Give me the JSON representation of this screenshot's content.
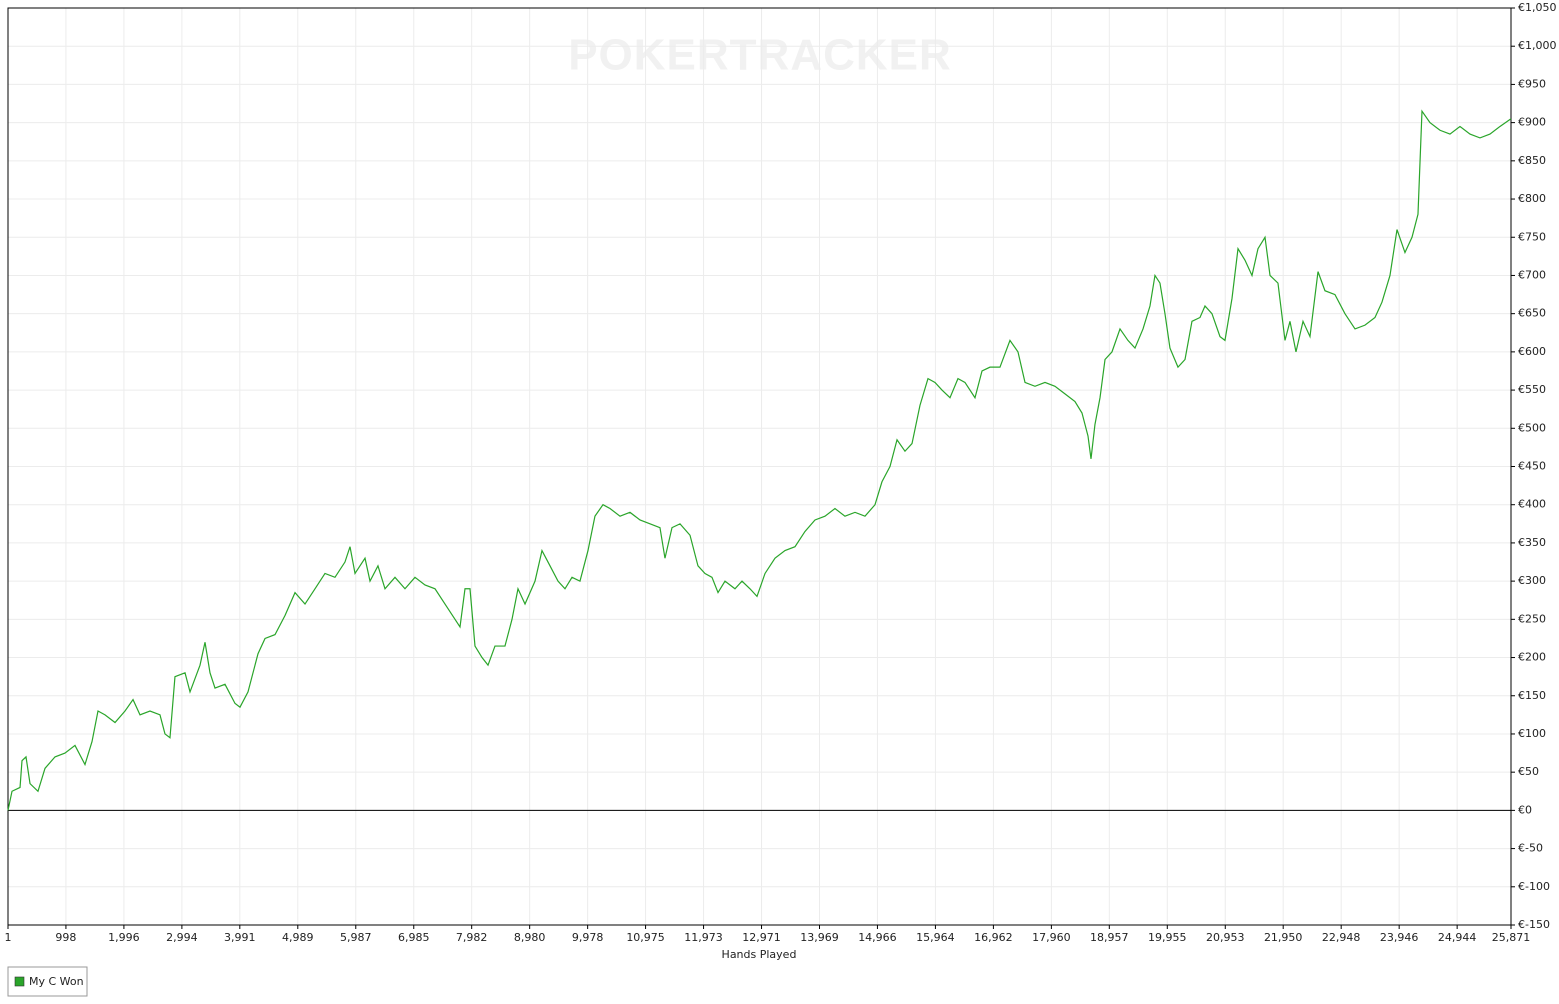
{
  "chart_data": {
    "type": "line",
    "watermark": "POKERTRACKER",
    "xlabel": "Hands Played",
    "x": [
      1,
      70,
      208,
      242,
      311,
      380,
      517,
      638,
      810,
      982,
      1154,
      1326,
      1447,
      1550,
      1671,
      1843,
      2015,
      2153,
      2273,
      2445,
      2617,
      2703,
      2789,
      2875,
      3048,
      3134,
      3306,
      3392,
      3478,
      3564,
      3736,
      3908,
      3994,
      4132,
      4304,
      4425,
      4597,
      4769,
      4941,
      5113,
      5285,
      5457,
      5629,
      5801,
      5888,
      5974,
      6146,
      6232,
      6369,
      6490,
      6662,
      6834,
      7006,
      7178,
      7351,
      7523,
      7695,
      7781,
      7867,
      7953,
      8039,
      8160,
      8263,
      8383,
      8555,
      8676,
      8779,
      8900,
      9072,
      9192,
      9330,
      9468,
      9588,
      9709,
      9846,
      9984,
      10104,
      10242,
      10363,
      10535,
      10707,
      10879,
      11051,
      11223,
      11309,
      11430,
      11568,
      11740,
      11877,
      11998,
      12118,
      12222,
      12342,
      12514,
      12635,
      12772,
      12893,
      13031,
      13203,
      13375,
      13547,
      13719,
      13891,
      14063,
      14235,
      14407,
      14580,
      14752,
      14924,
      15044,
      15182,
      15303,
      15440,
      15561,
      15698,
      15836,
      15957,
      16077,
      16215,
      16352,
      16473,
      16645,
      16766,
      16903,
      17075,
      17247,
      17385,
      17506,
      17678,
      17850,
      18022,
      18194,
      18366,
      18487,
      18590,
      18642,
      18710,
      18797,
      18883,
      19003,
      19141,
      19278,
      19399,
      19537,
      19657,
      19743,
      19829,
      19915,
      20001,
      20139,
      20260,
      20380,
      20518,
      20604,
      20724,
      20862,
      20948,
      21069,
      21172,
      21292,
      21413,
      21516,
      21637,
      21723,
      21860,
      21981,
      22067,
      22170,
      22291,
      22411,
      22549,
      22669,
      22841,
      23013,
      23186,
      23358,
      23530,
      23650,
      23788,
      23909,
      24046,
      24167,
      24270,
      24339,
      24476,
      24649,
      24821,
      24993,
      25165,
      25337,
      25509,
      25681,
      25871
    ],
    "series": [
      {
        "name": "My C Won",
        "color": "#2aa52a",
        "values": [
          0,
          25,
          30,
          65,
          70,
          35,
          25,
          55,
          70,
          75,
          85,
          60,
          90,
          130,
          125,
          115,
          130,
          145,
          125,
          130,
          125,
          100,
          95,
          175,
          180,
          155,
          190,
          220,
          180,
          160,
          165,
          140,
          135,
          155,
          205,
          225,
          230,
          255,
          285,
          270,
          290,
          310,
          305,
          325,
          345,
          310,
          330,
          300,
          320,
          290,
          305,
          290,
          305,
          295,
          290,
          270,
          250,
          240,
          290,
          290,
          215,
          200,
          190,
          215,
          215,
          250,
          290,
          270,
          300,
          340,
          320,
          300,
          290,
          305,
          300,
          340,
          385,
          400,
          395,
          385,
          390,
          380,
          375,
          370,
          330,
          370,
          375,
          360,
          320,
          310,
          305,
          285,
          300,
          290,
          300,
          290,
          280,
          310,
          330,
          340,
          345,
          365,
          380,
          385,
          395,
          385,
          390,
          385,
          400,
          430,
          450,
          485,
          470,
          480,
          530,
          565,
          560,
          550,
          540,
          565,
          560,
          540,
          575,
          580,
          580,
          615,
          600,
          560,
          555,
          560,
          555,
          545,
          535,
          520,
          490,
          460,
          505,
          540,
          590,
          600,
          630,
          615,
          605,
          630,
          660,
          700,
          690,
          650,
          605,
          580,
          590,
          640,
          645,
          660,
          650,
          620,
          615,
          670,
          735,
          720,
          700,
          735,
          750,
          700,
          690,
          615,
          640,
          600,
          640,
          620,
          705,
          680,
          675,
          650,
          630,
          635,
          645,
          665,
          700,
          760,
          730,
          750,
          780,
          915,
          900,
          890,
          885,
          895,
          885,
          880,
          885,
          895,
          905
        ]
      }
    ],
    "xlim": [
      1,
      25871
    ],
    "xticks": [
      1,
      {
        "value": 998,
        "label": "998"
      },
      {
        "value": 1996,
        "label": "1,996"
      },
      {
        "value": 2994,
        "label": "2,994"
      },
      {
        "value": 3991,
        "label": "3,991"
      },
      {
        "value": 4989,
        "label": "4,989"
      },
      {
        "value": 5987,
        "label": "5,987"
      },
      {
        "value": 6985,
        "label": "6,985"
      },
      {
        "value": 7982,
        "label": "7,982"
      },
      {
        "value": 8980,
        "label": "8,980"
      },
      {
        "value": 9978,
        "label": "9,978"
      },
      {
        "value": 10975,
        "label": "10,975"
      },
      {
        "value": 11973,
        "label": "11,973"
      },
      {
        "value": 12971,
        "label": "12,971"
      },
      {
        "value": 13969,
        "label": "13,969"
      },
      {
        "value": 14966,
        "label": "14,966"
      },
      {
        "value": 15964,
        "label": "15,964"
      },
      {
        "value": 16962,
        "label": "16,962"
      },
      {
        "value": 17960,
        "label": "17,960"
      },
      {
        "value": 18957,
        "label": "18,957"
      },
      {
        "value": 19955,
        "label": "19,955"
      },
      {
        "value": 20953,
        "label": "20,953"
      },
      {
        "value": 21950,
        "label": "21,950"
      },
      {
        "value": 22948,
        "label": "22,948"
      },
      {
        "value": 23946,
        "label": "23,946"
      },
      {
        "value": 24944,
        "label": "24,944"
      },
      {
        "value": 25871,
        "label": "25,871"
      }
    ],
    "ylim": [
      -150,
      1050
    ],
    "yticks": [
      {
        "value": -150,
        "label": "€-150"
      },
      {
        "value": -100,
        "label": "€-100"
      },
      {
        "value": -50,
        "label": "€-50"
      },
      {
        "value": 0,
        "label": "€0"
      },
      {
        "value": 50,
        "label": "€50"
      },
      {
        "value": 100,
        "label": "€100"
      },
      {
        "value": 150,
        "label": "€150"
      },
      {
        "value": 200,
        "label": "€200"
      },
      {
        "value": 250,
        "label": "€250"
      },
      {
        "value": 300,
        "label": "€300"
      },
      {
        "value": 350,
        "label": "€350"
      },
      {
        "value": 400,
        "label": "€400"
      },
      {
        "value": 450,
        "label": "€450"
      },
      {
        "value": 500,
        "label": "€500"
      },
      {
        "value": 550,
        "label": "€550"
      },
      {
        "value": 600,
        "label": "€600"
      },
      {
        "value": 650,
        "label": "€650"
      },
      {
        "value": 700,
        "label": "€700"
      },
      {
        "value": 750,
        "label": "€750"
      },
      {
        "value": 800,
        "label": "€800"
      },
      {
        "value": 850,
        "label": "€850"
      },
      {
        "value": 900,
        "label": "€900"
      },
      {
        "value": 950,
        "label": "€950"
      },
      {
        "value": 1000,
        "label": "€1,000"
      },
      {
        "value": 1050,
        "label": "€1,050"
      }
    ],
    "grid": true,
    "zero_line": true,
    "legend": "bottom-left"
  }
}
